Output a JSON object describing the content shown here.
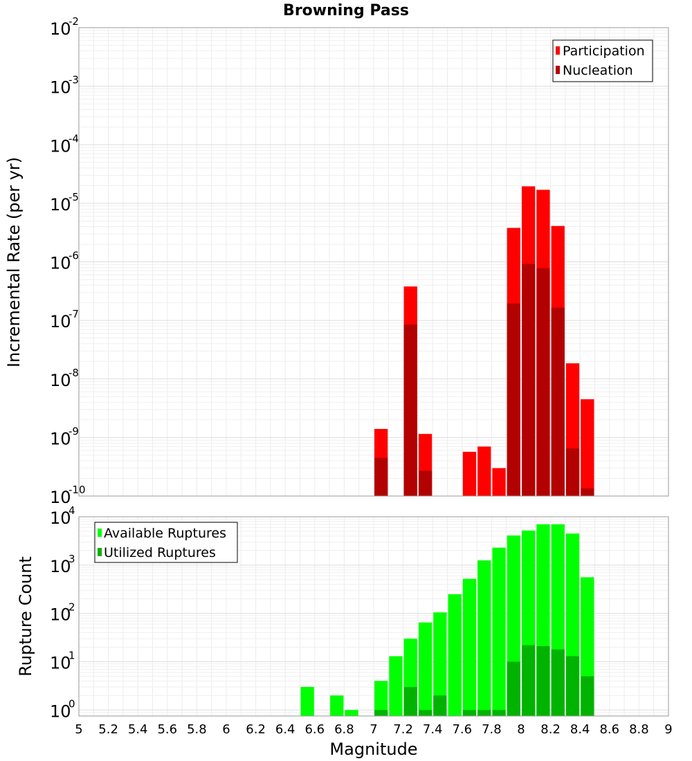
{
  "chart_data": [
    {
      "type": "bar",
      "title": "Browning Pass",
      "xlabel": "",
      "ylabel": "Incremental Rate (per yr)",
      "yscale": "log",
      "ylim": [
        1e-10,
        0.01
      ],
      "xlim": [
        5,
        9
      ],
      "yticks": [
        {
          "base": "10",
          "exp": "-10"
        },
        {
          "base": "10",
          "exp": "-9"
        },
        {
          "base": "10",
          "exp": "-8"
        },
        {
          "base": "10",
          "exp": "-7"
        },
        {
          "base": "10",
          "exp": "-6"
        },
        {
          "base": "10",
          "exp": "-5"
        },
        {
          "base": "10",
          "exp": "-4"
        },
        {
          "base": "10",
          "exp": "-3"
        },
        {
          "base": "10",
          "exp": "-2"
        }
      ],
      "x": [
        7.05,
        7.25,
        7.35,
        7.65,
        7.75,
        7.85,
        7.95,
        8.05,
        8.15,
        8.25,
        8.35,
        8.45
      ],
      "series": [
        {
          "name": "Participation",
          "color": "#ff0000",
          "values": [
            1.4e-09,
            3.8e-07,
            1.15e-09,
            5.7e-10,
            7e-10,
            3e-10,
            3.8e-06,
            1.95e-05,
            1.7e-05,
            4.1e-06,
            1.85e-08,
            4.5e-09
          ]
        },
        {
          "name": "Nucleation",
          "color": "#b30000",
          "values": [
            4.5e-10,
            8.5e-08,
            2.7e-10,
            null,
            null,
            null,
            1.95e-07,
            9.2e-07,
            7.8e-07,
            1.65e-07,
            6.5e-10,
            1.35e-10
          ]
        }
      ],
      "legend": "top-right"
    },
    {
      "type": "bar",
      "xlabel": "Magnitude",
      "ylabel": "Rupture Count",
      "yscale": "log",
      "ylim": [
        0.75,
        10000
      ],
      "xlim": [
        5,
        9
      ],
      "yticks": [
        {
          "base": "10",
          "exp": "0"
        },
        {
          "base": "10",
          "exp": "1"
        },
        {
          "base": "10",
          "exp": "2"
        },
        {
          "base": "10",
          "exp": "3"
        },
        {
          "base": "10",
          "exp": "4"
        }
      ],
      "xticks": [
        "5",
        "5.2",
        "5.4",
        "5.6",
        "5.8",
        "6",
        "6.2",
        "6.4",
        "6.6",
        "6.8",
        "7",
        "7.2",
        "7.4",
        "7.6",
        "7.8",
        "8",
        "8.2",
        "8.4",
        "8.6",
        "8.8",
        "9"
      ],
      "x": [
        6.55,
        6.75,
        6.85,
        7.05,
        7.15,
        7.25,
        7.35,
        7.45,
        7.55,
        7.65,
        7.75,
        7.85,
        7.95,
        8.05,
        8.15,
        8.25,
        8.35,
        8.45
      ],
      "series": [
        {
          "name": "Available Ruptures",
          "color": "#00ff00",
          "values": [
            3,
            2,
            1,
            4,
            13,
            30,
            65,
            105,
            250,
            520,
            1250,
            2300,
            4100,
            5200,
            7000,
            7000,
            4500,
            560
          ]
        },
        {
          "name": "Utilized Ruptures",
          "color": "#00b300",
          "values": [
            null,
            null,
            null,
            1,
            null,
            3,
            1,
            2,
            null,
            1,
            1,
            1,
            10,
            22,
            21,
            18,
            13,
            5
          ]
        }
      ],
      "legend": "top-left"
    }
  ]
}
